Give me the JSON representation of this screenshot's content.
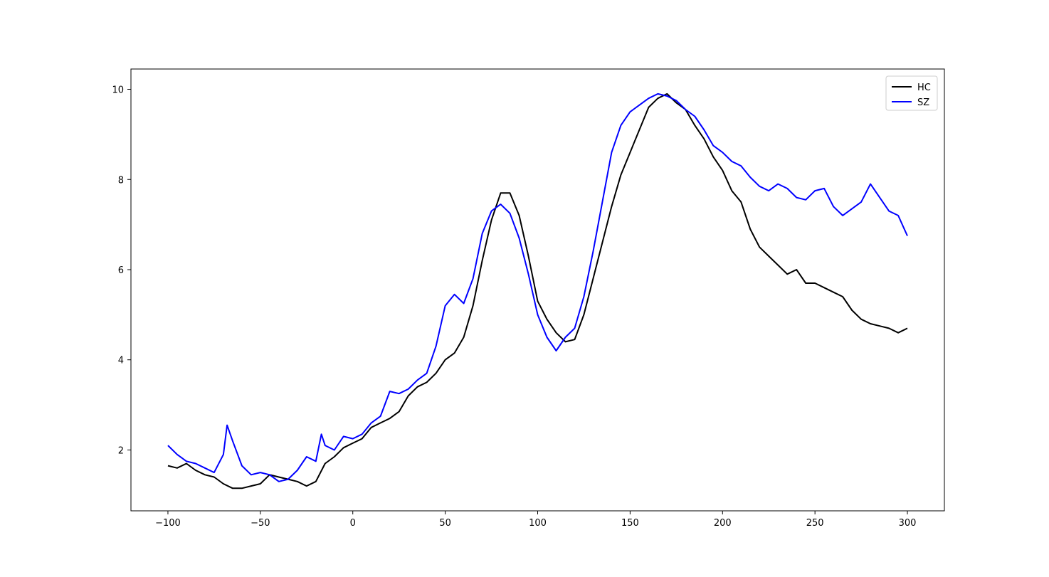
{
  "chart_data": {
    "type": "line",
    "title": "",
    "xlabel": "",
    "ylabel": "",
    "xlim": [
      -120,
      320
    ],
    "ylim": [
      0.65,
      10.45
    ],
    "xticks": [
      -100,
      -50,
      0,
      50,
      100,
      150,
      200,
      250,
      300
    ],
    "xtick_labels": [
      "−100",
      "−50",
      "0",
      "50",
      "100",
      "150",
      "200",
      "250",
      "300"
    ],
    "yticks": [
      2,
      4,
      6,
      8,
      10
    ],
    "ytick_labels": [
      "2",
      "4",
      "6",
      "8",
      "10"
    ],
    "grid": false,
    "legend_position": "top-right",
    "series": [
      {
        "name": "HC",
        "color": "#000000",
        "x": [
          -100,
          -95,
          -90,
          -85,
          -80,
          -75,
          -70,
          -65,
          -60,
          -55,
          -50,
          -45,
          -40,
          -35,
          -30,
          -25,
          -20,
          -15,
          -10,
          -5,
          0,
          5,
          10,
          15,
          20,
          25,
          30,
          35,
          40,
          45,
          50,
          55,
          60,
          65,
          70,
          75,
          80,
          85,
          90,
          95,
          100,
          105,
          110,
          115,
          120,
          125,
          130,
          135,
          140,
          145,
          150,
          155,
          160,
          165,
          170,
          175,
          180,
          185,
          190,
          195,
          200,
          205,
          210,
          215,
          220,
          225,
          230,
          235,
          240,
          245,
          250,
          255,
          260,
          265,
          270,
          275,
          280,
          285,
          290,
          295,
          300
        ],
        "values": [
          1.65,
          1.6,
          1.7,
          1.55,
          1.45,
          1.4,
          1.25,
          1.15,
          1.15,
          1.2,
          1.25,
          1.45,
          1.4,
          1.35,
          1.3,
          1.2,
          1.3,
          1.7,
          1.85,
          2.05,
          2.15,
          2.25,
          2.5,
          2.6,
          2.7,
          2.85,
          3.2,
          3.4,
          3.5,
          3.7,
          4.0,
          4.15,
          4.5,
          5.2,
          6.2,
          7.1,
          7.7,
          7.7,
          7.2,
          6.3,
          5.3,
          4.9,
          4.6,
          4.4,
          4.45,
          5.0,
          5.8,
          6.6,
          7.4,
          8.1,
          8.6,
          9.1,
          9.6,
          9.8,
          9.9,
          9.7,
          9.55,
          9.2,
          8.9,
          8.5,
          8.2,
          7.75,
          7.5,
          6.9,
          6.5,
          6.3,
          6.1,
          5.9,
          6.0,
          5.7,
          5.7,
          5.6,
          5.5,
          5.4,
          5.1,
          4.9,
          4.8,
          4.75,
          4.7,
          4.6,
          4.7
        ]
      },
      {
        "name": "SZ",
        "color": "#0000ff",
        "x": [
          -100,
          -95,
          -90,
          -85,
          -80,
          -75,
          -70,
          -68,
          -65,
          -60,
          -55,
          -50,
          -45,
          -40,
          -35,
          -30,
          -25,
          -20,
          -17,
          -15,
          -10,
          -5,
          0,
          5,
          10,
          15,
          20,
          25,
          30,
          35,
          40,
          45,
          50,
          55,
          60,
          65,
          70,
          75,
          80,
          85,
          90,
          95,
          100,
          105,
          110,
          115,
          120,
          125,
          130,
          135,
          140,
          145,
          150,
          155,
          160,
          165,
          170,
          175,
          180,
          185,
          190,
          195,
          200,
          205,
          210,
          215,
          220,
          225,
          230,
          235,
          240,
          245,
          250,
          255,
          260,
          265,
          270,
          275,
          280,
          285,
          290,
          295,
          300
        ],
        "values": [
          2.1,
          1.9,
          1.75,
          1.7,
          1.6,
          1.5,
          1.9,
          2.55,
          2.2,
          1.65,
          1.45,
          1.5,
          1.45,
          1.3,
          1.35,
          1.55,
          1.85,
          1.75,
          2.35,
          2.1,
          2.0,
          2.3,
          2.25,
          2.35,
          2.6,
          2.75,
          3.3,
          3.25,
          3.35,
          3.55,
          3.7,
          4.3,
          5.2,
          5.45,
          5.25,
          5.8,
          6.8,
          7.3,
          7.45,
          7.25,
          6.7,
          5.9,
          5.0,
          4.5,
          4.2,
          4.5,
          4.7,
          5.4,
          6.4,
          7.5,
          8.6,
          9.2,
          9.5,
          9.65,
          9.8,
          9.9,
          9.85,
          9.75,
          9.55,
          9.4,
          9.1,
          8.75,
          8.6,
          8.4,
          8.3,
          8.05,
          7.85,
          7.75,
          7.9,
          7.8,
          7.6,
          7.55,
          7.75,
          7.8,
          7.4,
          7.2,
          7.35,
          7.5,
          7.9,
          7.6,
          7.3,
          7.2,
          6.75
        ]
      }
    ]
  }
}
